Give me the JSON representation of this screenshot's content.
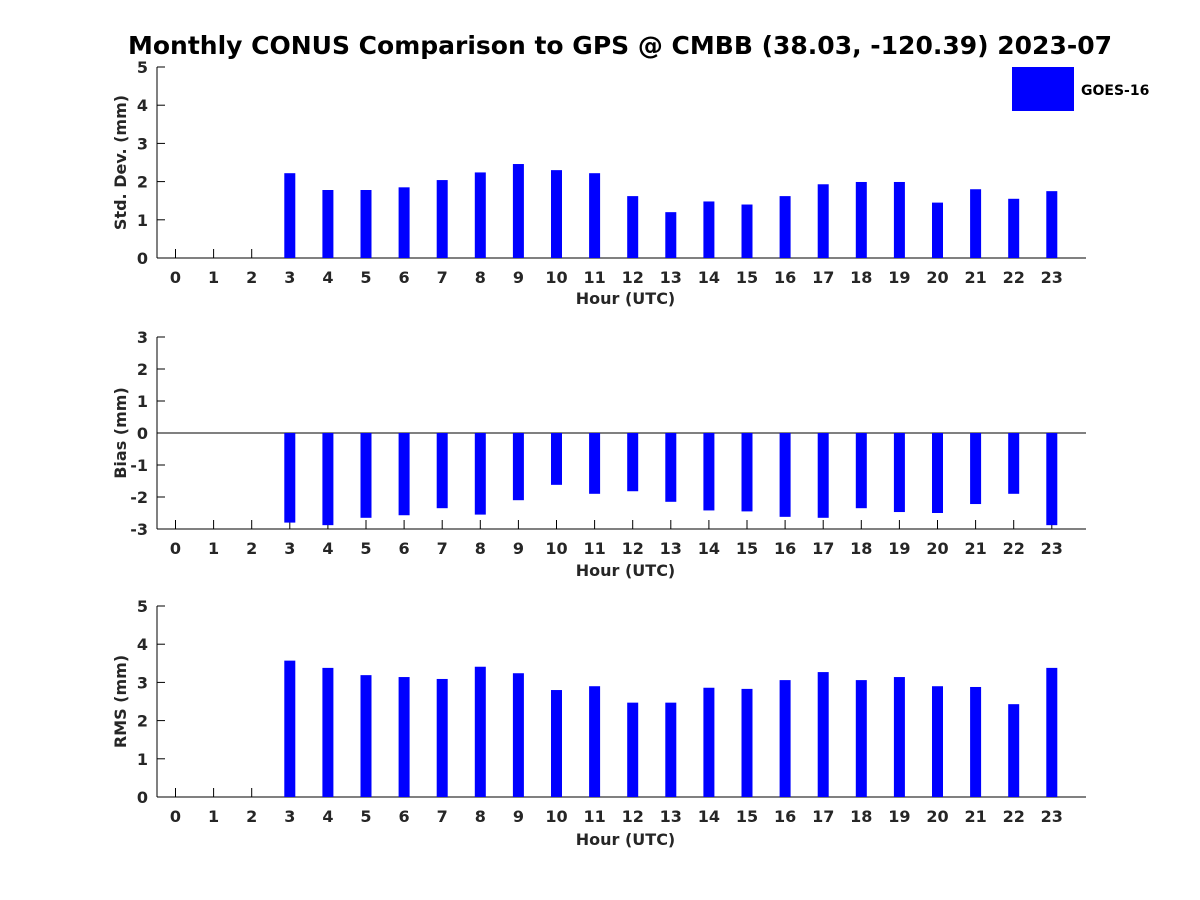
{
  "chart_data": {
    "type": "bar",
    "title": "Monthly CONUS Comparison to GPS @ CMBB (38.03, -120.39) 2023-07",
    "legend": {
      "label": "GOES-16",
      "color": "#0000ff",
      "placement": "top-right"
    },
    "bar_color": "#0000ff",
    "categories": [
      "0",
      "1",
      "2",
      "3",
      "4",
      "5",
      "6",
      "7",
      "8",
      "9",
      "10",
      "11",
      "12",
      "13",
      "14",
      "15",
      "16",
      "17",
      "18",
      "19",
      "20",
      "21",
      "22",
      "23"
    ],
    "panels": [
      {
        "name": "std-dev",
        "ylabel": "Std. Dev. (mm)",
        "xlabel": "Hour (UTC)",
        "ylim": [
          0,
          5
        ],
        "yticks": [
          "0",
          "1",
          "2",
          "3",
          "4",
          "5"
        ],
        "values": [
          null,
          null,
          null,
          2.22,
          1.78,
          1.78,
          1.85,
          2.04,
          2.24,
          2.46,
          2.3,
          2.22,
          1.62,
          1.2,
          1.48,
          1.4,
          1.62,
          1.93,
          1.99,
          1.99,
          1.45,
          1.8,
          1.55,
          1.75
        ]
      },
      {
        "name": "bias",
        "ylabel": "Bias (mm)",
        "xlabel": "Hour (UTC)",
        "ylim": [
          -3,
          3
        ],
        "yticks": [
          "-3",
          "-2",
          "-1",
          "0",
          "1",
          "2",
          "3"
        ],
        "values": [
          null,
          null,
          null,
          -2.8,
          -2.88,
          -2.65,
          -2.57,
          -2.35,
          -2.55,
          -2.1,
          -1.62,
          -1.9,
          -1.82,
          -2.15,
          -2.42,
          -2.45,
          -2.62,
          -2.65,
          -2.35,
          -2.47,
          -2.5,
          -2.22,
          -1.9,
          -2.88
        ]
      },
      {
        "name": "rms",
        "ylabel": "RMS (mm)",
        "xlabel": "Hour (UTC)",
        "ylim": [
          0,
          5
        ],
        "yticks": [
          "0",
          "1",
          "2",
          "3",
          "4",
          "5"
        ],
        "values": [
          null,
          null,
          null,
          3.57,
          3.38,
          3.19,
          3.14,
          3.09,
          3.41,
          3.24,
          2.8,
          2.9,
          2.47,
          2.47,
          2.86,
          2.83,
          3.06,
          3.27,
          3.06,
          3.14,
          2.9,
          2.88,
          2.43,
          3.38
        ]
      }
    ]
  }
}
